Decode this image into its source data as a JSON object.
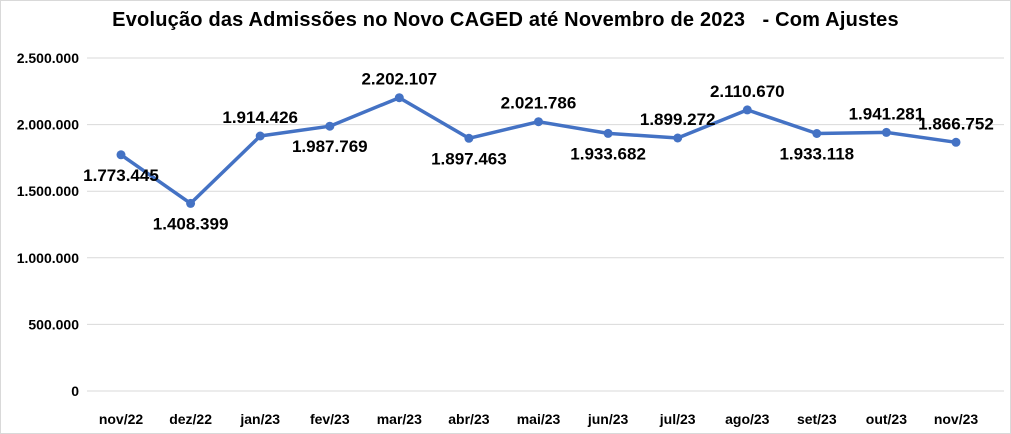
{
  "chart_data": {
    "type": "line",
    "title": "Evolução das Admissões no Novo CAGED até Novembro de 2023   - Com Ajustes",
    "categories": [
      "nov/22",
      "dez/22",
      "jan/23",
      "fev/23",
      "mar/23",
      "abr/23",
      "mai/23",
      "jun/23",
      "jul/23",
      "ago/23",
      "set/23",
      "out/23",
      "nov/23"
    ],
    "values": [
      1773445,
      1408399,
      1914426,
      1987769,
      2202107,
      1897463,
      2021786,
      1933682,
      1899272,
      2110670,
      1933118,
      1941281,
      1866752
    ],
    "labels": [
      "1.773.445",
      "1.408.399",
      "1.914.426",
      "1.987.769",
      "2.202.107",
      "1.897.463",
      "2.021.786",
      "1.933.682",
      "1.899.272",
      "2.110.670",
      "1.933.118",
      "1.941.281",
      "1.866.752"
    ],
    "label_positions": [
      "below",
      "below",
      "above",
      "below",
      "above",
      "below",
      "above",
      "below",
      "above",
      "above",
      "below",
      "above",
      "above"
    ],
    "xlabel": "",
    "ylabel": "",
    "ylim": [
      0,
      2500000
    ],
    "ytick_interval": 500000,
    "ytick_labels": [
      "0",
      "500.000",
      "1.000.000",
      "1.500.000",
      "2.000.000",
      "2.500.000"
    ],
    "grid": true,
    "legend": "none",
    "line_color": "#4472C4",
    "grid_color": "#d9d9d9"
  }
}
